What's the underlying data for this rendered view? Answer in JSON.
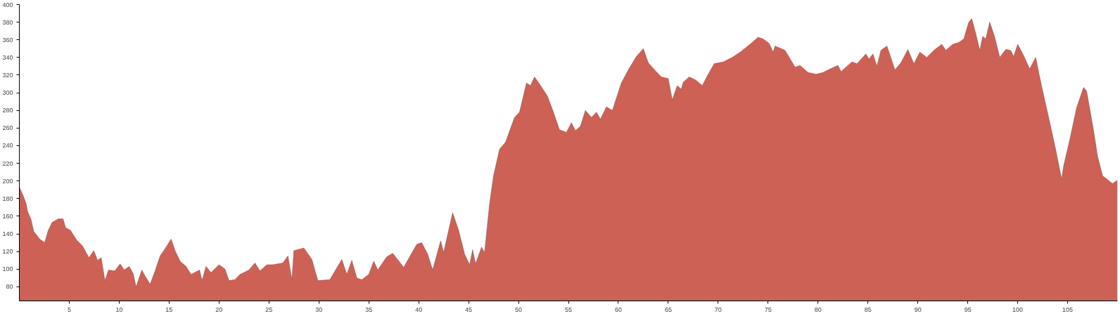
{
  "chart_data": {
    "type": "area",
    "x": [
      0,
      0.32,
      0.69,
      0.81,
      1.18,
      1.43,
      2.04,
      2.54,
      2.9,
      3.28,
      3.9,
      4.38,
      4.63,
      5.12,
      5.74,
      6.35,
      6.97,
      7.46,
      7.83,
      8.2,
      8.57,
      8.94,
      9.56,
      10.1,
      10.5,
      11.0,
      11.4,
      11.7,
      12.27,
      12.6,
      13.1,
      13.6,
      14.1,
      14.7,
      15.2,
      15.6,
      16.1,
      16.7,
      17.2,
      18.05,
      18.3,
      18.7,
      19.2,
      20.0,
      20.6,
      21.0,
      21.6,
      22.1,
      23.0,
      23.6,
      24.1,
      24.8,
      25.4,
      26.4,
      26.9,
      27.3,
      27.5,
      28.5,
      29.3,
      29.9,
      31.1,
      32.3,
      32.8,
      33.3,
      33.8,
      34.3,
      35.0,
      35.5,
      35.9,
      36.8,
      37.4,
      38.5,
      39.8,
      40.3,
      40.9,
      41.4,
      42.2,
      42.5,
      43.4,
      44.0,
      44.6,
      45.1,
      45.4,
      45.7,
      46.3,
      46.6,
      47.1,
      47.5,
      48.1,
      48.7,
      49.6,
      50.1,
      50.8,
      51.2,
      51.6,
      52.1,
      52.9,
      53.5,
      54.1,
      54.8,
      55.3,
      55.7,
      56.2,
      56.7,
      57.3,
      57.8,
      58.2,
      58.8,
      59.4,
      60.3,
      61.0,
      61.8,
      62.5,
      63.0,
      63.7,
      64.3,
      65.0,
      65.4,
      65.9,
      66.3,
      66.5,
      67.1,
      67.8,
      68.4,
      69.0,
      69.6,
      70.5,
      71.4,
      72.2,
      73.2,
      74.0,
      74.5,
      75.1,
      75.5,
      75.7,
      76.7,
      77.7,
      78.2,
      79.0,
      79.8,
      80.5,
      81.2,
      82.0,
      82.3,
      82.8,
      83.4,
      83.9,
      84.8,
      85.1,
      85.5,
      85.9,
      86.3,
      86.9,
      87.7,
      88.3,
      89.0,
      89.6,
      90.2,
      90.9,
      91.6,
      92.4,
      92.8,
      93.5,
      94.1,
      94.6,
      95.1,
      95.4,
      95.8,
      96.2,
      96.5,
      96.8,
      97.2,
      97.7,
      98.2,
      98.8,
      99.3,
      99.6,
      100.0,
      100.6,
      101.2,
      101.8,
      102.4,
      103.1,
      103.8,
      104.4,
      104.6,
      105.2,
      105.9,
      106.6,
      106.9,
      107.6,
      108.0,
      108.5,
      109.5,
      110.0
    ],
    "values": [
      193,
      185,
      174,
      166,
      156,
      143,
      134,
      130,
      144,
      153,
      157,
      157,
      147,
      144,
      133,
      126,
      113,
      121,
      110,
      113,
      87,
      99,
      98,
      106,
      99,
      103,
      95,
      80,
      99,
      92,
      83,
      98,
      115,
      125,
      134,
      121,
      109,
      103,
      94,
      99,
      87,
      103,
      96,
      105,
      100,
      87,
      88,
      94,
      99,
      107,
      98,
      105,
      105,
      107,
      115,
      88,
      121,
      124,
      111,
      87,
      88,
      111,
      94,
      110,
      90,
      88,
      94,
      109,
      99,
      114,
      118,
      102,
      128,
      130,
      117,
      99,
      132,
      119,
      164,
      144,
      117,
      105,
      122,
      106,
      125,
      119,
      174,
      206,
      236,
      244,
      272,
      278,
      311,
      308,
      318,
      310,
      296,
      278,
      258,
      255,
      266,
      257,
      262,
      280,
      272,
      278,
      270,
      284,
      280,
      311,
      326,
      341,
      350,
      334,
      325,
      318,
      316,
      292,
      308,
      304,
      312,
      318,
      314,
      308,
      321,
      333,
      335,
      340,
      346,
      355,
      363,
      361,
      356,
      346,
      353,
      348,
      329,
      331,
      323,
      321,
      323,
      327,
      331,
      324,
      329,
      335,
      333,
      344,
      338,
      344,
      330,
      348,
      353,
      326,
      334,
      349,
      333,
      346,
      340,
      348,
      355,
      348,
      355,
      357,
      361,
      380,
      384,
      367,
      348,
      364,
      361,
      380,
      363,
      340,
      349,
      348,
      341,
      355,
      342,
      327,
      340,
      307,
      272,
      236,
      202,
      217,
      246,
      283,
      306,
      302,
      257,
      228,
      206,
      197,
      201
    ],
    "color": "#cd6155",
    "xlim": [
      0,
      110
    ],
    "ylim": [
      64,
      400
    ],
    "xticks": [
      5,
      10,
      15,
      20,
      25,
      30,
      35,
      40,
      45,
      50,
      55,
      60,
      65,
      70,
      75,
      80,
      85,
      90,
      95,
      100,
      105
    ],
    "yticks": [
      80,
      100,
      120,
      140,
      160,
      180,
      200,
      220,
      240,
      260,
      280,
      300,
      320,
      340,
      360,
      380,
      400
    ],
    "grid": false
  }
}
